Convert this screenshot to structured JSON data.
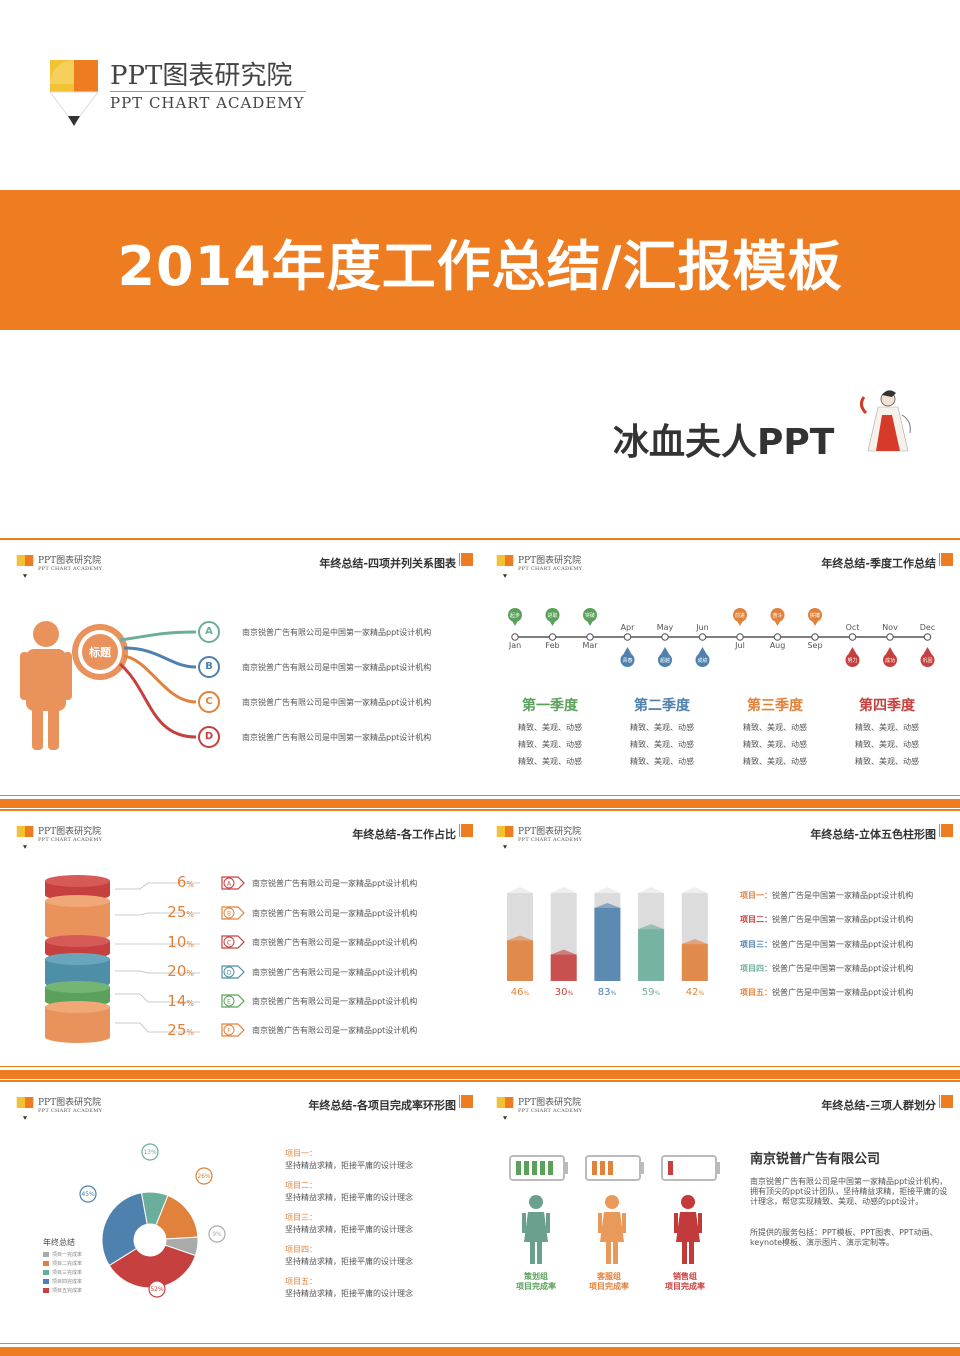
{
  "logo": {
    "cn": "PPT图表研究院",
    "en": "PPT CHART ACADEMY"
  },
  "cover": {
    "title": "2014年度工作总结/汇报模板",
    "author": "冰血夫人PPT"
  },
  "colors": {
    "orange": "#ee7d22",
    "red": "#c5403e",
    "blue": "#4e81ad",
    "teal": "#6cae9c",
    "green": "#5ba15b",
    "gray": "#aaaaaa"
  },
  "slide1": {
    "title": "年终总结-四项并列关系图表",
    "center_label": "标题",
    "items": [
      {
        "letter": "A",
        "text": "南京锐普广告有限公司是中国第一家精品ppt设计机构"
      },
      {
        "letter": "B",
        "text": "南京锐普广告有限公司是中国第一家精品ppt设计机构"
      },
      {
        "letter": "C",
        "text": "南京锐普广告有限公司是中国第一家精品ppt设计机构"
      },
      {
        "letter": "D",
        "text": "南京锐普广告有限公司是中国第一家精品ppt设计机构"
      }
    ]
  },
  "slide2": {
    "title": "年终总结-季度工作总结",
    "months": [
      "Jan",
      "Feb",
      "Mar",
      "Apr",
      "May",
      "Jun",
      "Jul",
      "Aug",
      "Sep",
      "Oct",
      "Nov",
      "Dec"
    ],
    "pins_top": [
      "起步",
      "进取",
      "突破",
      "",
      "",
      "",
      "前进",
      "奋斗",
      "拼搏",
      "",
      "",
      ""
    ],
    "pins_bottom": [
      "",
      "",
      "",
      "青春",
      "超越",
      "成绩",
      "",
      "",
      "",
      "努力",
      "成功",
      "巩固"
    ],
    "quarters": [
      {
        "name": "第一季度",
        "lines": [
          "精致、美观、动感",
          "精致、美观、动感",
          "精致、美观、动感"
        ]
      },
      {
        "name": "第二季度",
        "lines": [
          "精致、美观、动感",
          "精致、美观、动感",
          "精致、美观、动感"
        ]
      },
      {
        "name": "第三季度",
        "lines": [
          "精致、美观、动感",
          "精致、美观、动感",
          "精致、美观、动感"
        ]
      },
      {
        "name": "第四季度",
        "lines": [
          "精致、美观、动感",
          "精致、美观、动感",
          "精致、美观、动感"
        ]
      }
    ]
  },
  "slide3": {
    "title": "年终总结-各工作占比",
    "percent_unit": "%",
    "items": [
      {
        "letter": "A",
        "value": "6",
        "text": "南京锐普广告有限公司是一家精品ppt设计机构"
      },
      {
        "letter": "B",
        "value": "25",
        "text": "南京锐普广告有限公司是一家精品ppt设计机构"
      },
      {
        "letter": "C",
        "value": "10",
        "text": "南京锐普广告有限公司是一家精品ppt设计机构"
      },
      {
        "letter": "D",
        "value": "20",
        "text": "南京锐普广告有限公司是一家精品ppt设计机构"
      },
      {
        "letter": "E",
        "value": "14",
        "text": "南京锐普广告有限公司是一家精品ppt设计机构"
      },
      {
        "letter": "F",
        "value": "25",
        "text": "南京锐普广告有限公司是一家精品ppt设计机构"
      }
    ]
  },
  "slide4": {
    "title": "年终总结-立体五色柱形图",
    "percent_unit": "%",
    "values": [
      46,
      30,
      83,
      59,
      42
    ],
    "labels": [
      "46",
      "30",
      "83",
      "59",
      "42"
    ],
    "projects": [
      {
        "head": "项目一：",
        "text": "锐普广告是中国第一家精品ppt设计机构"
      },
      {
        "head": "项目二：",
        "text": "锐普广告是中国第一家精品ppt设计机构"
      },
      {
        "head": "项目三：",
        "text": "锐普广告是中国第一家精品ppt设计机构"
      },
      {
        "head": "项目四：",
        "text": "锐普广告是中国第一家精品ppt设计机构"
      },
      {
        "head": "项目五：",
        "text": "锐普广告是中国第一家精品ppt设计机构"
      }
    ]
  },
  "slide5": {
    "title": "年终总结-各项目完成率环形图",
    "donut_values": [
      13,
      26,
      9,
      52,
      45
    ],
    "donut_labels": [
      "13%",
      "26%",
      "9%",
      "52%",
      "45%"
    ],
    "legend_title": "年终总结",
    "legend": [
      "项目一完成率",
      "项目二完成率",
      "项目三完成率",
      "项目四完成率",
      "项目五完成率"
    ],
    "items": [
      {
        "head": "项目一：",
        "text": "坚持精益求精，拒接平庸的设计理念"
      },
      {
        "head": "项目二：",
        "text": "坚持精益求精，拒接平庸的设计理念"
      },
      {
        "head": "项目三：",
        "text": "坚持精益求精，拒接平庸的设计理念"
      },
      {
        "head": "项目四：",
        "text": "坚持精益求精，拒接平庸的设计理念"
      },
      {
        "head": "项目五：",
        "text": "坚持精益求精，拒接平庸的设计理念"
      }
    ]
  },
  "slide6": {
    "title": "年终总结-三项人群划分",
    "company": "南京锐普广告有限公司",
    "desc1": "南京锐普广告有限公司是中国第一家精品ppt设计机构，拥有顶尖的ppt设计团队，坚持精益求精，拒接平庸的设计理念，帮您实现精致、美观、动感的ppt设计。",
    "desc2": "所提供的服务包括：PPT模板、PPT图表、PPT动画、keynote模板、演示图片、演示定制等。",
    "groups": [
      {
        "line1": "策划组",
        "line2": "项目完成率",
        "bars": 5
      },
      {
        "line1": "客服组",
        "line2": "项目完成率",
        "bars": 3
      },
      {
        "line1": "销售组",
        "line2": "项目完成率",
        "bars": 1
      }
    ]
  }
}
